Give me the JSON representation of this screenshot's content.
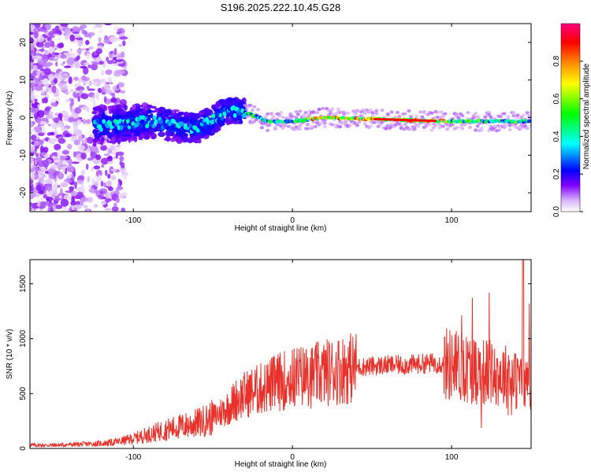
{
  "chart_data": [
    {
      "type": "heatmap",
      "title": "S196.2025.222.10.45.G28",
      "xlabel": "Height of straight line (km)",
      "ylabel": "Frequency (Hz)",
      "xlim": [
        -165,
        150
      ],
      "ylim": [
        -25,
        25
      ],
      "xticks": [
        -100,
        0,
        100
      ],
      "xtick_labels": [
        "-100",
        "0",
        "100"
      ],
      "yticks": [
        -20,
        -10,
        0,
        10,
        20
      ],
      "ytick_labels": [
        "-20",
        "-10",
        "0",
        "10",
        "20"
      ],
      "colorbar": {
        "label": "Normalized spectral amplitude",
        "range": [
          0,
          1
        ],
        "ticks": [
          0.0,
          0.2,
          0.4,
          0.6,
          0.8
        ],
        "tick_labels": [
          "0.0",
          "0.2",
          "0.4",
          "0.6",
          "0.8"
        ],
        "colors": [
          "#ffffff",
          "#d9b3ff",
          "#8000ff",
          "#0000ff",
          "#00ffff",
          "#00ff00",
          "#ffff00",
          "#ff8000",
          "#ff0000",
          "#ff0080"
        ]
      },
      "ridge": {
        "description_points_km_hz": [
          {
            "x": -120,
            "y": -2
          },
          {
            "x": -90,
            "y": -1
          },
          {
            "x": -60,
            "y": -3
          },
          {
            "x": -40,
            "y": 2
          },
          {
            "x": -30,
            "y": 1.5
          },
          {
            "x": -15,
            "y": -1
          },
          {
            "x": 0,
            "y": -1
          },
          {
            "x": 20,
            "y": 0
          },
          {
            "x": 60,
            "y": -0.5
          },
          {
            "x": 100,
            "y": -1
          },
          {
            "x": 150,
            "y": -1
          }
        ]
      }
    },
    {
      "type": "line",
      "title": "",
      "xlabel": "Height of straight line (km)",
      "ylabel": "SNR (10 * v/v)",
      "xlim": [
        -165,
        150
      ],
      "ylim": [
        0,
        1720
      ],
      "xticks": [
        -100,
        0,
        100
      ],
      "xtick_labels": [
        "-100",
        "0",
        "100"
      ],
      "yticks": [
        0,
        500,
        1000,
        1500
      ],
      "ytick_labels": [
        "0",
        "500",
        "1000",
        "1500"
      ],
      "series": [
        {
          "name": "SNR",
          "color": "#e8312a",
          "x": [
            -165,
            -150,
            -140,
            -130,
            -120,
            -110,
            -100,
            -90,
            -80,
            -70,
            -60,
            -50,
            -40,
            -35,
            -30,
            -25,
            -20,
            -15,
            -10,
            -5,
            0,
            5,
            10,
            15,
            20,
            30,
            40,
            50,
            60,
            70,
            80,
            90,
            100,
            110,
            120,
            130,
            135,
            140,
            145,
            150
          ],
          "y": [
            30,
            30,
            35,
            40,
            45,
            60,
            90,
            130,
            170,
            200,
            230,
            280,
            380,
            450,
            490,
            520,
            540,
            570,
            600,
            620,
            640,
            660,
            650,
            670,
            690,
            720,
            740,
            750,
            760,
            760,
            770,
            780,
            760,
            730,
            700,
            680,
            660,
            620,
            600,
            620
          ]
        }
      ]
    }
  ]
}
